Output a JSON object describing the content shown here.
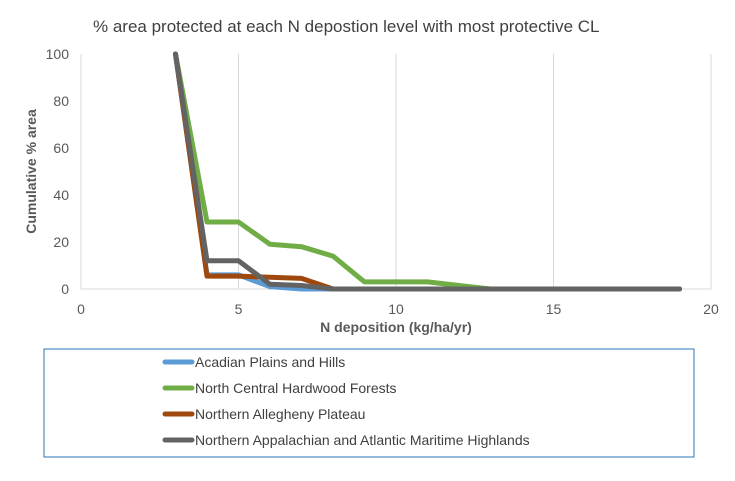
{
  "chart_data": {
    "type": "line",
    "title": "% area protected at each N depostion level with most protective CL",
    "xlabel": "N deposition (kg/ha/yr)",
    "ylabel": "Cumulative % area",
    "xlim": [
      0,
      20
    ],
    "ylim": [
      0,
      100
    ],
    "xticks": [
      "0",
      "5",
      "10",
      "15",
      "20"
    ],
    "yticks": [
      "0",
      "20",
      "40",
      "60",
      "80",
      "100"
    ],
    "grid": "vertical",
    "legend_position": "bottom",
    "series": [
      {
        "name": "Acadian Plains and Hills",
        "color": "#5B9BD5",
        "x": [
          3,
          4,
          5,
          6,
          7,
          8,
          9,
          10,
          11,
          12,
          13,
          14,
          15,
          16,
          17,
          18,
          19
        ],
        "y": [
          100,
          6,
          6,
          1,
          0,
          0,
          0,
          0,
          0,
          0,
          0,
          0,
          0,
          0,
          0,
          0,
          0
        ]
      },
      {
        "name": "North Central Hardwood Forests",
        "color": "#70AD47",
        "x": [
          3,
          4,
          5,
          6,
          7,
          8,
          9,
          10,
          11,
          12,
          13,
          14,
          15,
          16,
          17,
          18,
          19
        ],
        "y": [
          100,
          28.5,
          28.5,
          19,
          18,
          14,
          3,
          3,
          3,
          1.5,
          0,
          0,
          0,
          0,
          0,
          0,
          0
        ]
      },
      {
        "name": "Northern Allegheny Plateau",
        "color": "#9E480E",
        "x": [
          3,
          4,
          5,
          6,
          7,
          8,
          9,
          10,
          11,
          12,
          13,
          14,
          15,
          16,
          17,
          18,
          19
        ],
        "y": [
          100,
          5.5,
          5.5,
          5,
          4.5,
          0,
          0,
          0,
          0,
          0,
          0,
          0,
          0,
          0,
          0,
          0,
          0
        ]
      },
      {
        "name": "Northern Appalachian and Atlantic Maritime Highlands",
        "color": "#636363",
        "x": [
          3,
          4,
          5,
          6,
          7,
          8,
          9,
          10,
          11,
          12,
          13,
          14,
          15,
          16,
          17,
          18,
          19
        ],
        "y": [
          100,
          12,
          12,
          2,
          1.5,
          0,
          0,
          0,
          0,
          0,
          0,
          0,
          0,
          0,
          0,
          0,
          0
        ]
      }
    ]
  },
  "colors": {
    "gridline": "#D9D9D9",
    "legend_border": "#2E75B6"
  }
}
